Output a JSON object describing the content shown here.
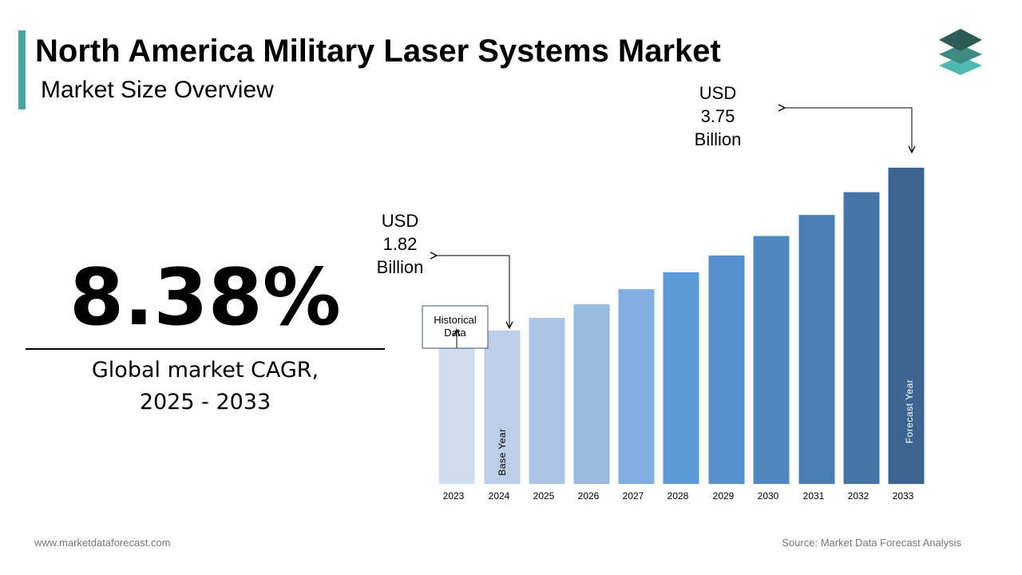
{
  "header": {
    "title": "North America Military Laser Systems Market",
    "subtitle": "Market Size Overview"
  },
  "logo": {
    "icon": "stacked-layers-logo-icon",
    "colors": [
      "#2e5a55",
      "#3f8a80",
      "#4fb8b0"
    ]
  },
  "cagr": {
    "value": "8.38%",
    "label_line1": "Global market CAGR,",
    "label_line2": "2025 - 2033"
  },
  "chart_data": {
    "type": "bar",
    "categories": [
      "2023",
      "2024",
      "2025",
      "2026",
      "2027",
      "2028",
      "2029",
      "2030",
      "2031",
      "2032",
      "2033"
    ],
    "values": [
      1.68,
      1.82,
      1.97,
      2.13,
      2.31,
      2.51,
      2.71,
      2.94,
      3.19,
      3.46,
      3.75
    ],
    "ylim": [
      0,
      3.75
    ],
    "grid": false,
    "colors": [
      "#cfdcee",
      "#bccfe8",
      "#abc4e5",
      "#98b9e0",
      "#82afe0",
      "#5a9ad7",
      "#5590cc",
      "#4f87c0",
      "#4a7fb4",
      "#4475a6",
      "#3c6591"
    ],
    "callouts": {
      "start": {
        "lines": [
          "USD",
          "1.82",
          "Billion"
        ]
      },
      "end": {
        "lines": [
          "USD",
          "3.75",
          "Billion"
        ]
      }
    },
    "historical_box": {
      "lines": [
        "Historical",
        "Data"
      ]
    },
    "bar_labels": {
      "base": "Base Year",
      "forecast": "Forecast Year"
    }
  },
  "footer": {
    "website": "www.marketdataforecast.com",
    "source": "Source: Market Data Forecast Analysis"
  }
}
